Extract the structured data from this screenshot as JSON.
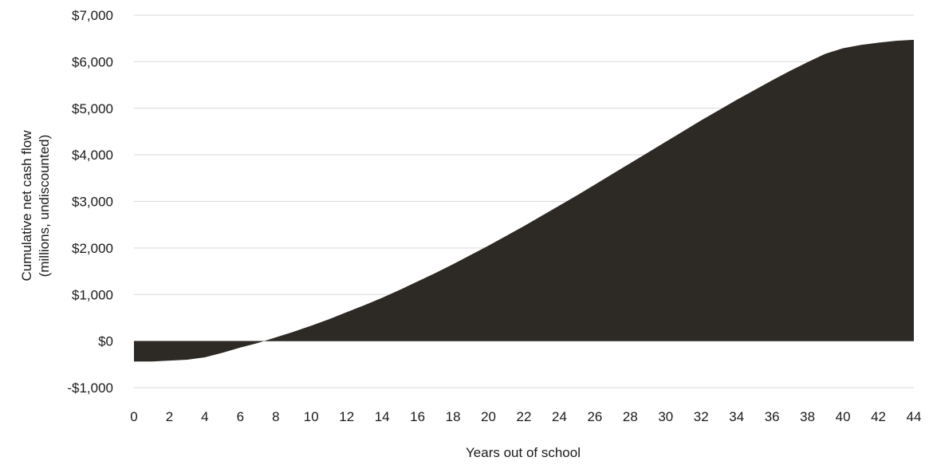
{
  "chart_data": {
    "type": "area",
    "title": "",
    "xlabel": "Years out of school",
    "ylabel_lines": [
      "Cumulative net cash flow",
      "(millions, undiscounted)"
    ],
    "xlim": [
      0,
      44
    ],
    "ylim": [
      -1000,
      7000
    ],
    "x_ticks": [
      0,
      2,
      4,
      6,
      8,
      10,
      12,
      14,
      16,
      18,
      20,
      22,
      24,
      26,
      28,
      30,
      32,
      34,
      36,
      38,
      40,
      42,
      44
    ],
    "y_ticks": [
      -1000,
      0,
      1000,
      2000,
      3000,
      4000,
      5000,
      6000,
      7000
    ],
    "y_tick_labels": [
      "-$1,000",
      "$0",
      "$1,000",
      "$2,000",
      "$3,000",
      "$4,000",
      "$5,000",
      "$6,000",
      "$7,000"
    ],
    "grid": "horizontal",
    "fill_color": "#2d2a26",
    "grid_color": "#d9d9d9",
    "series": [
      {
        "x": [
          0,
          1,
          2,
          3,
          4,
          5,
          6,
          7,
          8,
          9,
          10,
          11,
          12,
          13,
          14,
          15,
          16,
          17,
          18,
          19,
          20,
          21,
          22,
          23,
          24,
          25,
          26,
          27,
          28,
          29,
          30,
          31,
          32,
          33,
          34,
          35,
          36,
          37,
          38,
          39,
          40,
          41,
          42,
          43,
          44
        ],
        "values": [
          -440,
          -440,
          -420,
          -400,
          -350,
          -250,
          -140,
          -40,
          80,
          200,
          330,
          470,
          620,
          770,
          930,
          1100,
          1280,
          1460,
          1650,
          1850,
          2050,
          2260,
          2470,
          2690,
          2910,
          3130,
          3360,
          3590,
          3820,
          4050,
          4280,
          4510,
          4740,
          4960,
          5180,
          5390,
          5600,
          5800,
          5990,
          6170,
          6290,
          6360,
          6410,
          6450,
          6470
        ]
      }
    ]
  }
}
